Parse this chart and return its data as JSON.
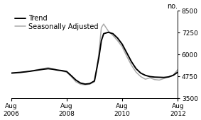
{
  "title": "",
  "ylabel_right": "no.",
  "legend_entries": [
    "Trend",
    "Seasonally Adjusted"
  ],
  "legend_colors": [
    "#000000",
    "#aaaaaa"
  ],
  "xlim": [
    0,
    72
  ],
  "ylim": [
    3500,
    8500
  ],
  "yticks": [
    3500,
    4750,
    6000,
    7250,
    8500
  ],
  "xtick_positions": [
    0,
    24,
    48,
    72
  ],
  "xtick_labels_bottom": [
    [
      "Aug",
      "2006"
    ],
    [
      "Aug",
      "2008"
    ],
    [
      "Aug",
      "2010"
    ],
    [
      "Aug",
      "2012"
    ]
  ],
  "background_color": "#ffffff",
  "trend_x": [
    0,
    2,
    4,
    6,
    8,
    10,
    12,
    14,
    16,
    18,
    20,
    22,
    24,
    26,
    28,
    30,
    32,
    34,
    36,
    38,
    39,
    40,
    42,
    44,
    46,
    48,
    50,
    52,
    54,
    56,
    58,
    60,
    62,
    64,
    66,
    68,
    70,
    72
  ],
  "trend_y": [
    4950,
    4970,
    4990,
    5020,
    5050,
    5090,
    5130,
    5170,
    5200,
    5170,
    5120,
    5090,
    5040,
    4800,
    4550,
    4380,
    4320,
    4350,
    4500,
    5900,
    6800,
    7200,
    7280,
    7200,
    6950,
    6600,
    6100,
    5600,
    5200,
    4950,
    4820,
    4750,
    4720,
    4710,
    4700,
    4730,
    4820,
    5000
  ],
  "sa_x": [
    0,
    2,
    4,
    6,
    8,
    10,
    12,
    14,
    16,
    18,
    20,
    22,
    24,
    26,
    28,
    30,
    32,
    34,
    36,
    37,
    38,
    39,
    40,
    42,
    44,
    46,
    48,
    50,
    52,
    54,
    56,
    58,
    60,
    62,
    64,
    66,
    68,
    70,
    72
  ],
  "sa_y": [
    4940,
    4950,
    4980,
    5010,
    5060,
    5110,
    5160,
    5210,
    5260,
    5200,
    5130,
    5060,
    5000,
    4750,
    4450,
    4310,
    4280,
    4320,
    4450,
    5100,
    6200,
    7550,
    7750,
    7350,
    7100,
    6800,
    6450,
    5900,
    5400,
    5000,
    4750,
    4600,
    4680,
    4580,
    4550,
    4640,
    4730,
    4820,
    5150
  ],
  "trend_color": "#000000",
  "sa_color": "#aaaaaa",
  "trend_lw": 1.4,
  "sa_lw": 1.1,
  "font_size": 7,
  "tick_label_size": 6.5
}
